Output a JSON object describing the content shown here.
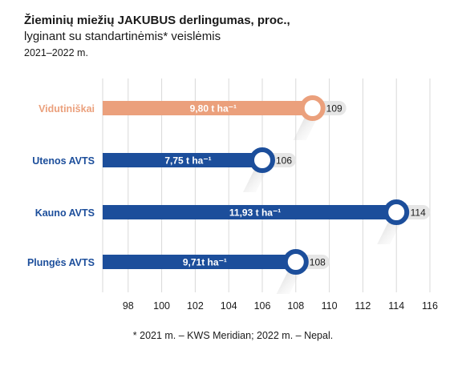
{
  "header": {
    "title": "Žieminių miežių JAKUBUS derlingumas, proc.,",
    "subtitle": "lyginant su standartinėmis* veislėmis",
    "period": "2021–2022 m."
  },
  "footnote": "* 2021 m. – KWS Meridian; 2022 m. – Nepal.",
  "colors": {
    "accent": "#EBA07C",
    "primary": "#1C4E9B",
    "pill": "#E6E6E6",
    "grid": "#D9D9D9"
  },
  "chart_data": {
    "type": "bar",
    "orientation": "horizontal",
    "categories": [
      "Vidutiniškai",
      "Utenos AVTS",
      "Kauno AVTS",
      "Plungės AVTS"
    ],
    "values": [
      109,
      106,
      114,
      108
    ],
    "value_labels": [
      "109",
      "106",
      "114",
      "108"
    ],
    "bar_labels": [
      "9,80 t ha⁻¹",
      "7,75  t ha⁻¹",
      "11,93 t ha⁻¹",
      "9,71t ha⁻¹"
    ],
    "category_colors": [
      "#EBA07C",
      "#1C4E9B",
      "#1C4E9B",
      "#1C4E9B"
    ],
    "xlim": [
      96,
      117
    ],
    "xticks": [
      98,
      100,
      102,
      104,
      106,
      108,
      110,
      112,
      114,
      116
    ],
    "grid": true
  }
}
